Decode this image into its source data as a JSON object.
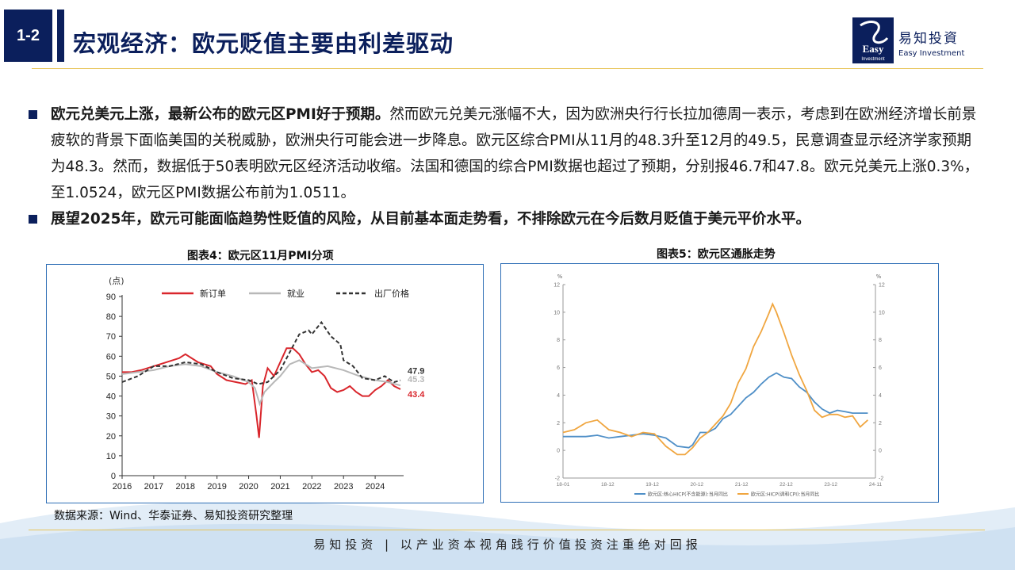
{
  "header": {
    "section_number": "1-2",
    "title": "宏观经济：欧元贬值主要由利差驱动",
    "logo_cn": "易知投資",
    "logo_en": "Easy Investment",
    "logo_mark_text": "Easy Investment"
  },
  "bullets": [
    {
      "bold": "欧元兑美元上涨，最新公布的欧元区PMI好于预期。",
      "text": "然而欧元兑美元涨幅不大，因为欧洲央行行长拉加德周一表示，考虑到在欧洲经济增长前景疲软的背景下面临美国的关税威胁，欧洲央行可能会进一步降息。欧元区综合PMI从11月的48.3升至12月的49.5，民意调查显示经济学家预期为48.3。然而，数据低于50表明欧元区经济活动收缩。法国和德国的综合PMI数据也超过了预期，分别报46.7和47.8。欧元兑美元上涨0.3%，至1.0524，欧元区PMI数据公布前为1.0511。"
    },
    {
      "bold": "展望2025年，欧元可能面临趋势性贬值的风险，从目前基本面走势看，不排除欧元在今后数月贬值于美元平价水平。",
      "text": ""
    }
  ],
  "figure4": {
    "caption": "图表4：欧元区11月PMI分项"
  },
  "figure5": {
    "caption": "图表5：欧元区通胀走势"
  },
  "source_note": "数据来源：Wind、华泰证券、易知投资研究整理",
  "footer": {
    "text": "易知投资 | 以产业资本视角践行价值投资注重绝对回报"
  },
  "colors": {
    "navy": "#0b1f5c",
    "gold": "#e8c55a",
    "panel_border": "#2f6fb6"
  },
  "chart_data": [
    {
      "type": "line",
      "ylabel": "(点)",
      "ylim": [
        0,
        90
      ],
      "yticks": [
        0,
        10,
        20,
        30,
        40,
        50,
        60,
        70,
        80,
        90
      ],
      "xticks": [
        "2016",
        "2017",
        "2018",
        "2019",
        "2020",
        "2021",
        "2022",
        "2023",
        "2024"
      ],
      "xlim": [
        2016,
        2024.9
      ],
      "legend_position": "top",
      "end_labels": [
        {
          "text": "47.9",
          "color": "#333333",
          "value": 47.9
        },
        {
          "text": "45.3",
          "color": "#b8b8b8",
          "value": 45.3
        },
        {
          "text": "43.4",
          "color": "#d9262c",
          "value": 43.4
        }
      ],
      "series": [
        {
          "name": "新订单",
          "color": "#d9262c",
          "dash": false,
          "x": [
            2016.0,
            2016.3,
            2016.6,
            2017.0,
            2017.4,
            2017.8,
            2018.0,
            2018.4,
            2018.8,
            2019.0,
            2019.3,
            2019.6,
            2019.9,
            2020.1,
            2020.25,
            2020.33,
            2020.45,
            2020.6,
            2020.8,
            2021.0,
            2021.2,
            2021.4,
            2021.6,
            2021.8,
            2022.0,
            2022.2,
            2022.4,
            2022.6,
            2022.8,
            2023.0,
            2023.2,
            2023.4,
            2023.6,
            2023.8,
            2024.0,
            2024.2,
            2024.4,
            2024.6,
            2024.8
          ],
          "y": [
            52,
            52,
            53,
            55,
            57,
            59,
            61,
            57,
            55,
            51,
            48,
            47,
            46,
            48,
            30,
            19,
            45,
            54,
            50,
            57,
            64,
            64,
            61,
            56,
            52,
            53,
            50,
            44,
            42,
            43,
            45,
            42,
            40,
            40,
            43,
            45,
            48,
            45,
            43.4
          ]
        },
        {
          "name": "就业",
          "color": "#b8b8b8",
          "dash": false,
          "x": [
            2016.0,
            2016.5,
            2017.0,
            2017.5,
            2018.0,
            2018.5,
            2019.0,
            2019.5,
            2020.0,
            2020.2,
            2020.35,
            2020.5,
            2020.8,
            2021.0,
            2021.3,
            2021.6,
            2022.0,
            2022.5,
            2023.0,
            2023.5,
            2024.0,
            2024.4,
            2024.8
          ],
          "y": [
            51,
            52,
            53,
            55,
            56,
            55,
            52,
            50,
            47,
            44,
            36,
            42,
            47,
            50,
            56,
            58,
            54,
            55,
            53,
            50,
            48,
            47,
            45.3
          ]
        },
        {
          "name": "出厂价格",
          "color": "#333333",
          "dash": true,
          "x": [
            2016.0,
            2016.5,
            2017.0,
            2017.5,
            2018.0,
            2018.5,
            2019.0,
            2019.5,
            2020.0,
            2020.3,
            2020.6,
            2021.0,
            2021.3,
            2021.6,
            2021.9,
            2022.0,
            2022.3,
            2022.6,
            2022.9,
            2023.0,
            2023.3,
            2023.6,
            2024.0,
            2024.3,
            2024.6,
            2024.8
          ],
          "y": [
            47,
            50,
            55,
            55,
            57,
            56,
            52,
            49,
            48,
            46,
            47,
            53,
            62,
            71,
            73,
            71,
            77,
            70,
            66,
            58,
            55,
            49,
            48,
            50,
            47,
            47.9
          ]
        }
      ]
    },
    {
      "type": "line",
      "ylabel": "%",
      "ylim": [
        -2,
        12
      ],
      "yticks": [
        -2,
        0,
        2,
        4,
        6,
        8,
        10,
        12
      ],
      "xticks": [
        "18-01",
        "18-12",
        "19-12",
        "20-12",
        "21-12",
        "22-12",
        "23-12",
        "24-11"
      ],
      "xlim": [
        0,
        82
      ],
      "legend_position": "bottom",
      "series": [
        {
          "name": "欧元区:核心HICP(不含能源):当月同比",
          "color": "#4f8fc7",
          "dash": false,
          "x": [
            0,
            3,
            6,
            9,
            12,
            15,
            18,
            21,
            24,
            27,
            30,
            33,
            34,
            36,
            38,
            40,
            42,
            44,
            46,
            48,
            50,
            52,
            54,
            56,
            58,
            60,
            62,
            64,
            66,
            68,
            70,
            72,
            74,
            76,
            78,
            80
          ],
          "y": [
            1.0,
            1.0,
            1.0,
            1.1,
            0.9,
            1.0,
            1.1,
            1.2,
            1.1,
            0.9,
            0.3,
            0.2,
            0.4,
            1.3,
            1.3,
            1.6,
            2.3,
            2.6,
            3.2,
            3.8,
            4.2,
            4.8,
            5.3,
            5.6,
            5.3,
            5.2,
            4.6,
            4.2,
            3.5,
            3.0,
            2.7,
            2.9,
            2.8,
            2.7,
            2.7,
            2.7
          ]
        },
        {
          "name": "欧元区:HICP(调和CPI):当月同比",
          "color": "#f0a640",
          "dash": false,
          "x": [
            0,
            3,
            6,
            9,
            12,
            15,
            18,
            21,
            24,
            27,
            30,
            32,
            34,
            36,
            38,
            40,
            42,
            44,
            46,
            48,
            50,
            52,
            54,
            55,
            56,
            58,
            60,
            62,
            64,
            66,
            68,
            70,
            72,
            74,
            76,
            78,
            80
          ],
          "y": [
            1.3,
            1.5,
            2.0,
            2.2,
            1.5,
            1.3,
            1.0,
            1.3,
            1.2,
            0.3,
            -0.3,
            -0.3,
            0.2,
            0.9,
            1.3,
            1.9,
            2.5,
            3.4,
            4.9,
            5.9,
            7.5,
            8.6,
            9.9,
            10.6,
            10.0,
            8.5,
            6.9,
            5.5,
            4.3,
            2.9,
            2.4,
            2.6,
            2.6,
            2.4,
            2.5,
            1.7,
            2.2
          ]
        }
      ]
    }
  ]
}
